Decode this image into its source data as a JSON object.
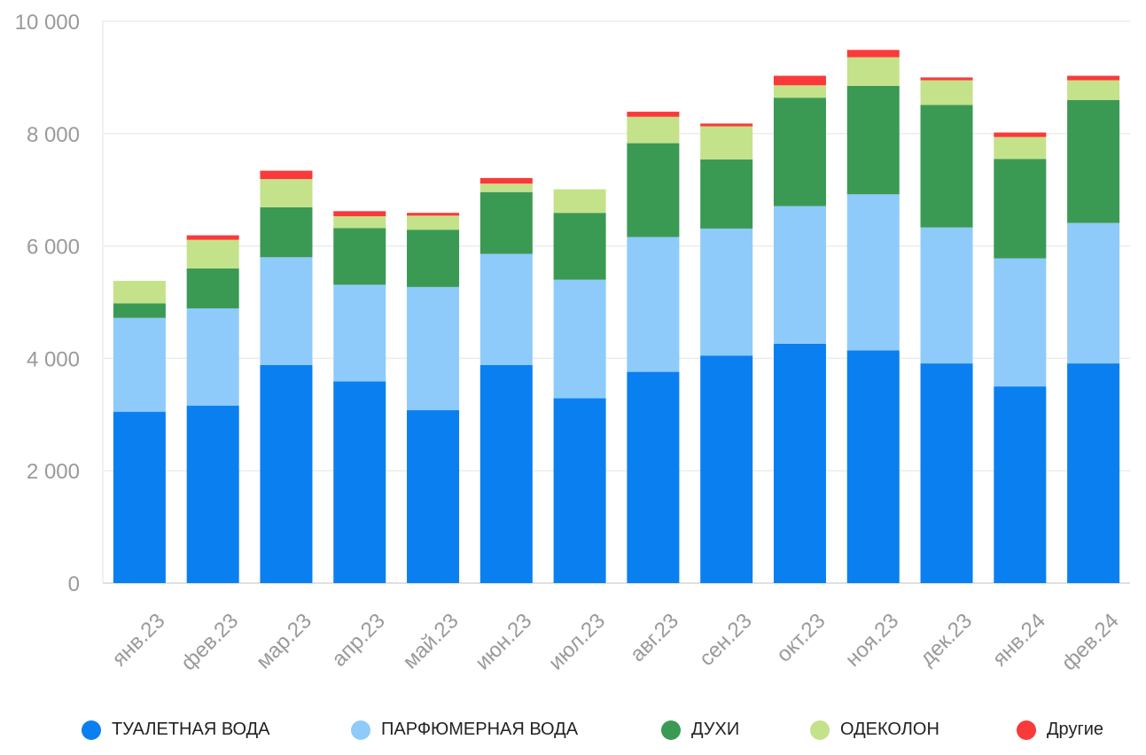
{
  "chart_data": {
    "type": "bar",
    "stacked": true,
    "categories": [
      "янв.23",
      "фев.23",
      "мар.23",
      "апр.23",
      "май.23",
      "июн.23",
      "июл.23",
      "авг.23",
      "сен.23",
      "окт.23",
      "ноя.23",
      "дек.23",
      "янв.24",
      "фев.24"
    ],
    "series": [
      {
        "name": "ТУАЛЕТНАЯ ВОДА",
        "color": "#0a7ff0",
        "values": [
          3050,
          3160,
          3880,
          3590,
          3080,
          3880,
          3290,
          3760,
          4050,
          4260,
          4140,
          3910,
          3500,
          3910
        ]
      },
      {
        "name": "ПАРФЮМЕРНАЯ ВОДА",
        "color": "#8ecbfb",
        "values": [
          1670,
          1730,
          1920,
          1720,
          2190,
          1980,
          2110,
          2400,
          2260,
          2450,
          2780,
          2420,
          2280,
          2500
        ]
      },
      {
        "name": "ДУХИ",
        "color": "#3a9a54",
        "values": [
          260,
          710,
          890,
          1010,
          1020,
          1100,
          1190,
          1670,
          1230,
          1930,
          1930,
          2180,
          1770,
          2190
        ]
      },
      {
        "name": "ОДЕКОЛОН",
        "color": "#c4e28a",
        "values": [
          400,
          510,
          500,
          210,
          250,
          150,
          420,
          470,
          590,
          220,
          510,
          440,
          390,
          350
        ]
      },
      {
        "name": "Другие",
        "color": "#fa3a3a",
        "values": [
          0,
          80,
          150,
          90,
          50,
          100,
          0,
          90,
          50,
          170,
          130,
          50,
          80,
          80
        ]
      }
    ],
    "y_ticks": [
      "0",
      "2 000",
      "4 000",
      "6 000",
      "8 000",
      "10 000"
    ],
    "ylim": [
      0,
      10000
    ],
    "grid": true,
    "legend_position": "bottom"
  }
}
